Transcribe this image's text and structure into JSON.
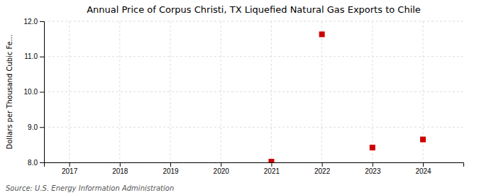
{
  "chart_data": {
    "type": "scatter",
    "title": "Annual Price of Corpus Christi, TX Liquefied Natural Gas Exports to Chile",
    "ylabel": "Dollars per Thousand Cubic Fe...",
    "annotations": [
      "Source: U.S. Energy Information Administration"
    ],
    "x": [
      2021,
      2022,
      2023,
      2024
    ],
    "values": [
      8.02,
      11.63,
      8.42,
      8.65
    ],
    "color": "#cc0000",
    "marker": "square",
    "xlim": [
      2016.5,
      2024.8
    ],
    "ylim": [
      8.0,
      12.0
    ],
    "xticks": [
      2017,
      2018,
      2019,
      2020,
      2021,
      2022,
      2023,
      2024
    ],
    "yticks": [
      {
        "value": 8.0,
        "label": "8.0"
      },
      {
        "value": 9.0,
        "label": "9.0"
      },
      {
        "value": 10.0,
        "label": "10.0"
      },
      {
        "value": 11.0,
        "label": "11.0"
      },
      {
        "value": 12.0,
        "label": "12.0"
      }
    ],
    "grid": true
  }
}
